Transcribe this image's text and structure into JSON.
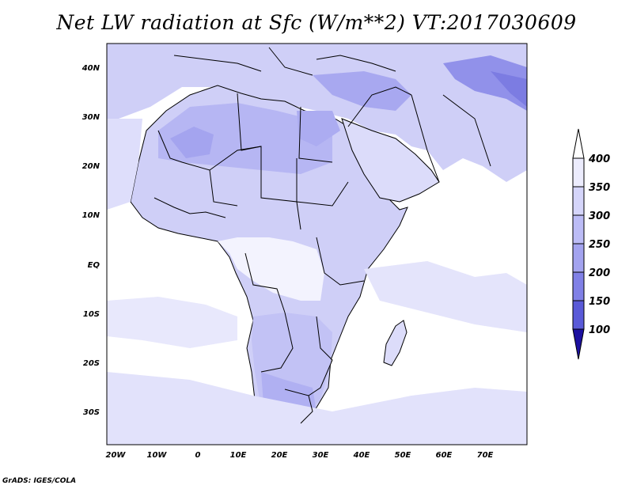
{
  "title": "Net LW radiation at Sfc (W/m**2) VT:2017030609",
  "credit": "GrADS: IGES/COLA",
  "map": {
    "lon_range": [
      -22,
      80
    ],
    "lat_range": [
      -37,
      46
    ],
    "x_ticks": [
      "20W",
      "10W",
      "0",
      "10E",
      "20E",
      "30E",
      "40E",
      "50E",
      "60E",
      "70E"
    ],
    "y_ticks": [
      "40N",
      "30N",
      "20N",
      "10N",
      "EQ",
      "10S",
      "20S",
      "30S"
    ],
    "background_color": "#ffffff",
    "land_fill_color": "#cfcff7",
    "border_color": "#000000"
  },
  "colorbar": {
    "labels": [
      "400",
      "350",
      "300",
      "250",
      "200",
      "150",
      "100"
    ],
    "colors": [
      "#ececfd",
      "#d5d5fa",
      "#bcbcf6",
      "#a3a3ef",
      "#8080e6",
      "#5a5ad8",
      "#3a2ec0"
    ],
    "top_color": "#ffffff",
    "bottom_color": "#1c10a0"
  }
}
